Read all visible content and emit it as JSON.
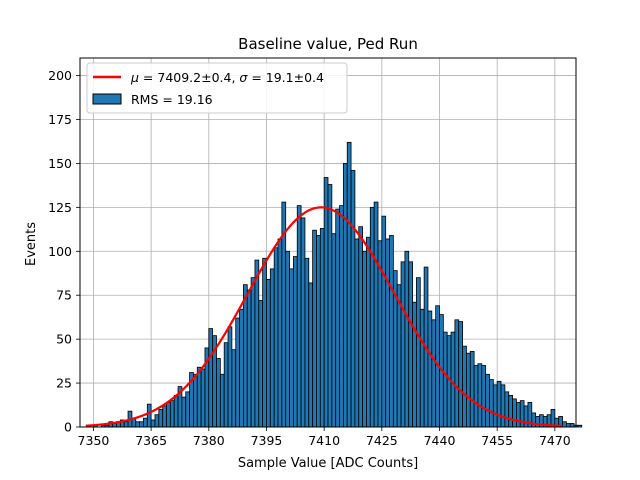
{
  "chart_data": {
    "type": "bar",
    "title": "Baseline value, Ped Run",
    "xlabel": "Sample Value [ADC Counts]",
    "ylabel": "Events",
    "xlim": [
      7346.5,
      7475.5
    ],
    "ylim": [
      0,
      210
    ],
    "xticks": [
      7350,
      7365,
      7380,
      7395,
      7410,
      7425,
      7440,
      7455,
      7470
    ],
    "yticks": [
      0,
      25,
      50,
      75,
      100,
      125,
      150,
      175,
      200
    ],
    "grid": true,
    "legend_position": "top-left",
    "bar_color": "#1f77b4",
    "fit_color": "#ff0000",
    "histogram": {
      "name": "RMS = 19.16",
      "bin_start": 7350,
      "bin_width": 1,
      "counts": [
        1,
        0,
        1,
        1,
        3,
        2,
        3,
        4,
        3,
        9,
        5,
        3,
        3,
        5,
        13,
        4,
        7,
        10,
        12,
        14,
        15,
        18,
        23,
        17,
        20,
        31,
        30,
        34,
        33,
        45,
        56,
        52,
        39,
        30,
        48,
        57,
        44,
        62,
        67,
        81,
        78,
        85,
        95,
        72,
        96,
        84,
        90,
        102,
        107,
        128,
        100,
        90,
        97,
        126,
        119,
        96,
        82,
        112,
        109,
        113,
        142,
        138,
        110,
        124,
        126,
        150,
        162,
        146,
        107,
        114,
        100,
        108,
        125,
        128,
        106,
        120,
        107,
        109,
        89,
        81,
        94,
        100,
        94,
        71,
        85,
        67,
        91,
        66,
        61,
        69,
        64,
        54,
        52,
        54,
        61,
        60,
        46,
        42,
        43,
        35,
        36,
        35,
        30,
        27,
        24,
        26,
        24,
        20,
        18,
        16,
        14,
        15,
        12,
        14,
        8,
        6,
        7,
        6,
        7,
        10,
        5,
        6,
        3,
        2,
        2,
        1,
        1,
        0,
        0,
        0
      ]
    },
    "fit": {
      "name": "$\\mu = 7409.2$±0.4, $\\sigma = 19.1$±0.4",
      "mu": 7409.2,
      "sigma": 19.1,
      "amplitude": 125,
      "x_range": [
        7348,
        7472
      ]
    }
  },
  "legend": {
    "fit_prefix": "μ = ",
    "fit_mu": "7409.2±0.4",
    "fit_sep": ", ",
    "fit_sigma_prefix": "σ = ",
    "fit_sigma": "19.1±0.4",
    "hist_label": "RMS = 19.16"
  }
}
